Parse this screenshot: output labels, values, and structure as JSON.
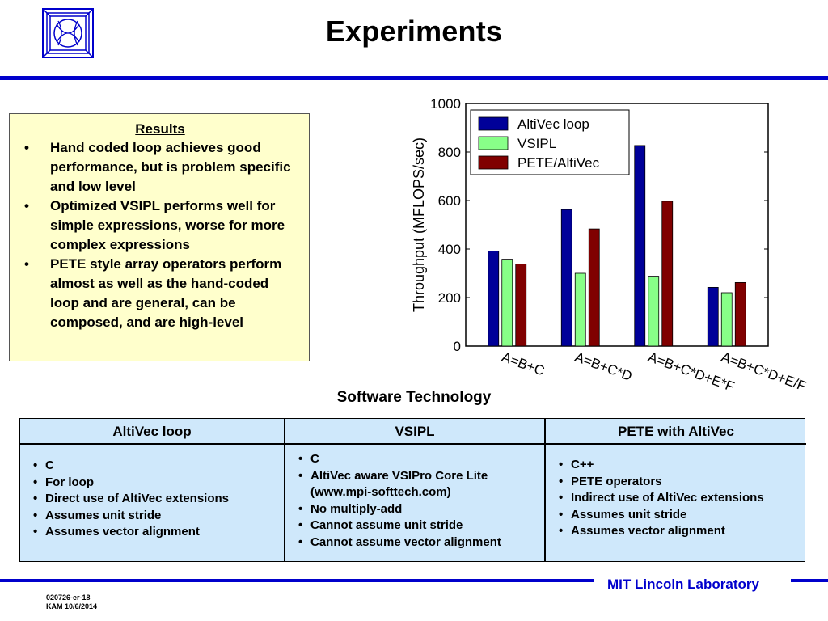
{
  "header": {
    "title": "Experiments"
  },
  "results": {
    "heading": "Results",
    "items": [
      "Hand coded loop achieves good performance, but is problem specific and low level",
      "Optimized VSIPL performs well for simple expressions, worse for more complex expressions",
      "PETE style array operators perform almost as well as the hand-coded loop and are general, can be composed, and are high-level"
    ]
  },
  "chart_data": {
    "type": "bar",
    "categories": [
      "A=B+C",
      "A=B+C*D",
      "A=B+C*D+E*F",
      "A=B+C*D+E/F"
    ],
    "series": [
      {
        "name": "AltiVec loop",
        "values": [
          392,
          563,
          827,
          242
        ],
        "color": "#000099"
      },
      {
        "name": "VSIPL",
        "values": [
          358,
          300,
          288,
          220
        ],
        "color": "#88ff88"
      },
      {
        "name": "PETE/AltiVec",
        "values": [
          338,
          483,
          597,
          262
        ],
        "color": "#800000"
      }
    ],
    "ylabel": "Throughput (MFLOPS/sec)",
    "ylim": [
      0,
      1000
    ],
    "yticks": [
      0,
      200,
      400,
      600,
      800,
      1000
    ],
    "legend": "top-left",
    "grid": false
  },
  "software": {
    "title": "Software Technology",
    "columns": [
      {
        "heading": "AltiVec loop",
        "items": [
          "C",
          "For loop",
          "Direct use of AltiVec extensions",
          "Assumes unit stride",
          "Assumes vector alignment"
        ]
      },
      {
        "heading": "VSIPL",
        "items": [
          "C",
          "AltiVec aware VSIPro Core Lite (www.mpi-softtech.com)",
          "No multiply-add",
          "Cannot assume unit stride",
          "Cannot assume vector alignment"
        ]
      },
      {
        "heading": "PETE with AltiVec",
        "items": [
          "C++",
          "PETE operators",
          "Indirect use of AltiVec extensions",
          "Assumes unit stride",
          "Assumes vector alignment"
        ]
      }
    ]
  },
  "footer": {
    "lab": "MIT Lincoln Laboratory",
    "code": "020726-er-18",
    "date": "KAM 10/6/2014"
  },
  "colors": {
    "accent": "#0000cc",
    "results_bg": "#ffffcc",
    "table_bg": "#cfe8fb"
  }
}
